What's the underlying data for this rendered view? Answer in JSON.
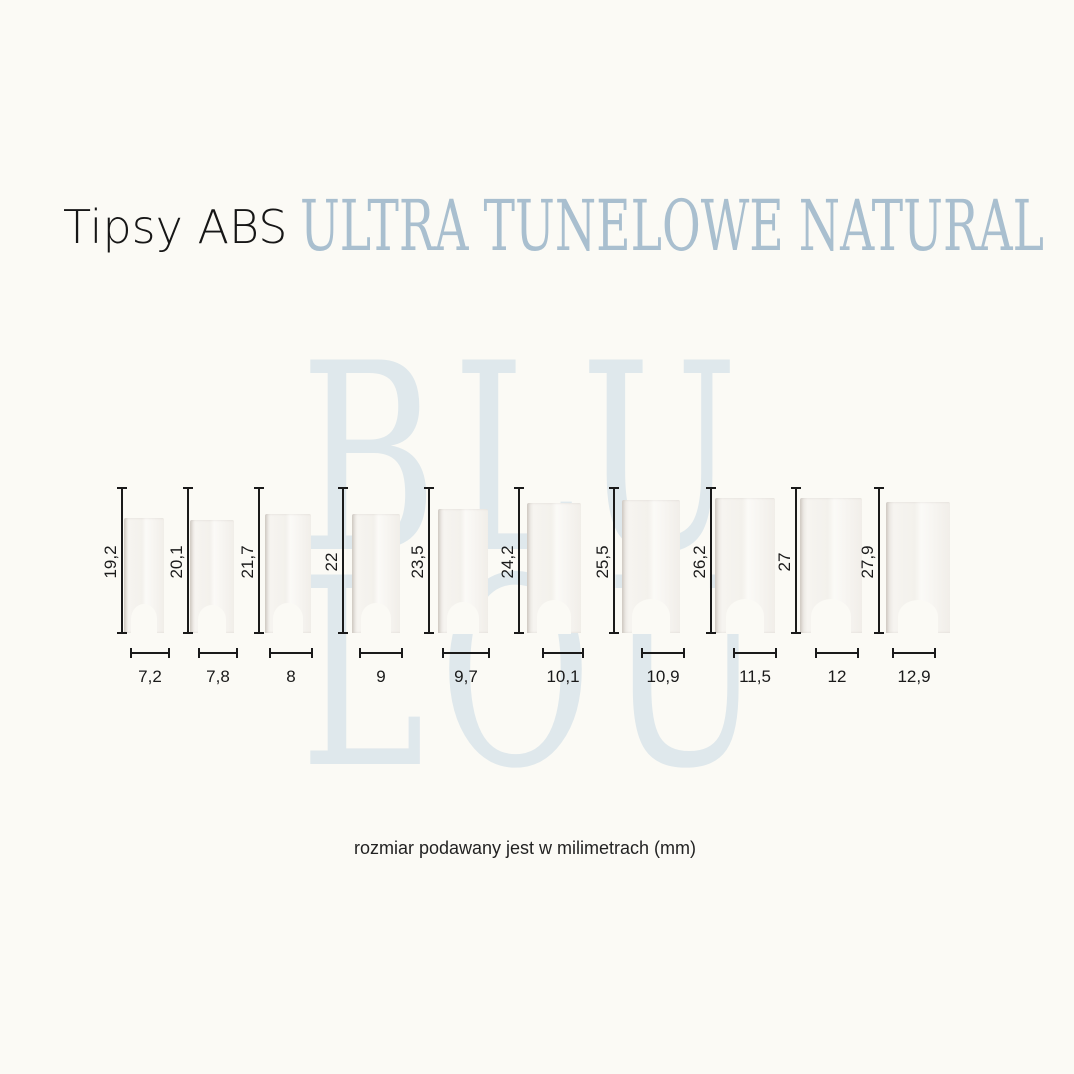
{
  "title": {
    "main": "Tipsy ABS",
    "sub": "ULTRA TUNELOWE NATURAL",
    "sub_color": "#a9bfcf"
  },
  "watermark": {
    "line1": "BLU",
    "line2": "LOU",
    "color": "#dfe8ec"
  },
  "tips": [
    {
      "length": "19,2",
      "width": "7,2"
    },
    {
      "length": "20,1",
      "width": "7,8"
    },
    {
      "length": "21,7",
      "width": "8"
    },
    {
      "length": "22",
      "width": "9"
    },
    {
      "length": "23,5",
      "width": "9,7"
    },
    {
      "length": "24,2",
      "width": "10,1"
    },
    {
      "length": "25,5",
      "width": "10,9"
    },
    {
      "length": "26,2",
      "width": "11,5"
    },
    {
      "length": "27",
      "width": "12"
    },
    {
      "length": "27,9",
      "width": "12,9"
    }
  ],
  "footnote": "rozmiar podawany jest w milimetrach (mm)"
}
